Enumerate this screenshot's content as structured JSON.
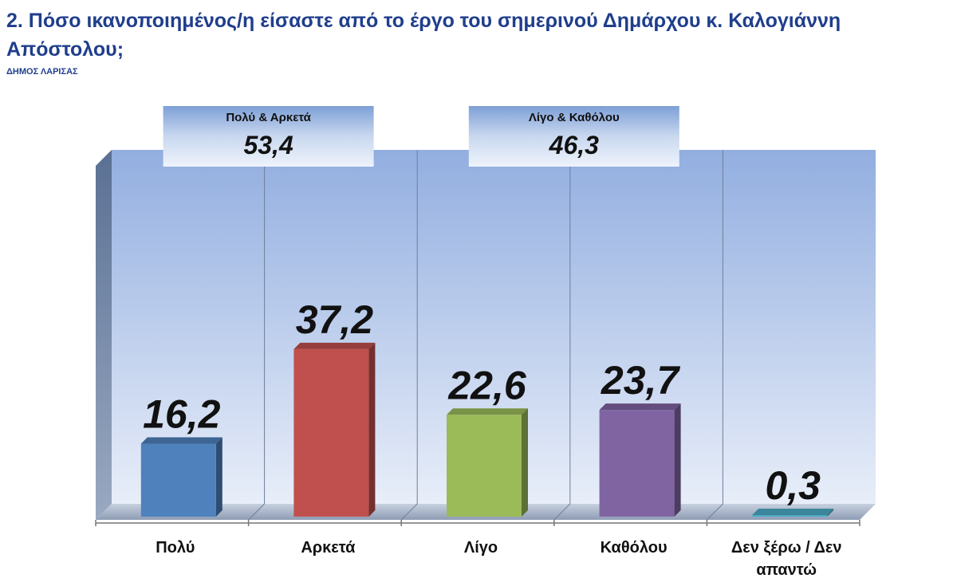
{
  "title": "2. Πόσο ικανοποιημένος/η είσαστε από το έργο του σημερινού Δημάρχου κ. Καλογιάννη Απόστολου;",
  "subtitle": "ΔΗΜΟΣ ΛΑΡΙΣΑΣ",
  "colors": {
    "bar_blue": "#4f81bd",
    "bar_red": "#c0504d",
    "bar_green": "#9bbb59",
    "bar_purple": "#8064a2",
    "bar_teal": "#4bacc6",
    "title": "#1f3e8c"
  },
  "chart_data": {
    "type": "bar",
    "categories": [
      "Πολύ",
      "Αρκετά",
      "Λίγο",
      "Καθόλου",
      "Δεν ξέρω / Δεν απαντώ"
    ],
    "values": [
      16.2,
      37.2,
      22.6,
      23.7,
      0.3
    ],
    "value_labels": [
      "16,2",
      "37,2",
      "22,6",
      "23,7",
      "0,3"
    ],
    "ylim": [
      0,
      50
    ],
    "grid": true,
    "annotations": [
      {
        "label": "Πολύ & Αρκετά",
        "value": "53,4"
      },
      {
        "label": "Λίγο & Καθόλου",
        "value": "46,3"
      }
    ]
  }
}
